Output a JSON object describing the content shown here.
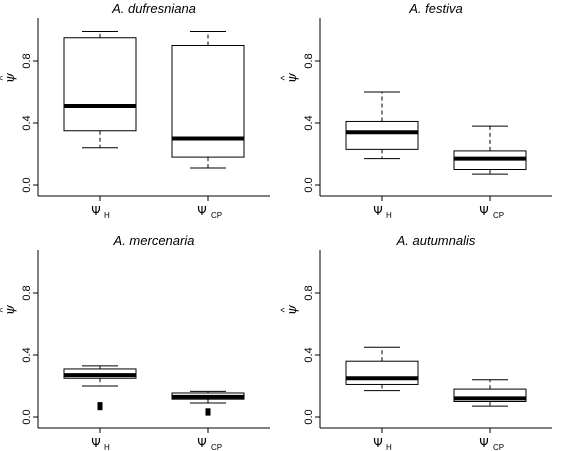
{
  "chart_data": [
    {
      "type": "box",
      "title": "A. dufresniana",
      "ylabel": "ψ",
      "ylabel_accent": "^",
      "ylim": [
        0,
        1
      ],
      "yticks": [
        "0.0",
        "0.4",
        "0.8"
      ],
      "categories": [
        {
          "symbol": "Ψ",
          "sub": "H"
        },
        {
          "symbol": "Ψ",
          "sub": "CP"
        }
      ],
      "boxes": [
        {
          "low": 0.24,
          "q1": 0.35,
          "median": 0.51,
          "q3": 0.95,
          "high": 0.99,
          "outliers": []
        },
        {
          "low": 0.11,
          "q1": 0.18,
          "median": 0.3,
          "q3": 0.9,
          "high": 0.99,
          "outliers": []
        }
      ]
    },
    {
      "type": "box",
      "title": "A. festiva",
      "ylabel": "ψ",
      "ylabel_accent": "^",
      "ylim": [
        0,
        1
      ],
      "yticks": [
        "0.0",
        "0.4",
        "0.8"
      ],
      "categories": [
        {
          "symbol": "Ψ",
          "sub": "H"
        },
        {
          "symbol": "Ψ",
          "sub": "CP"
        }
      ],
      "boxes": [
        {
          "low": 0.17,
          "q1": 0.23,
          "median": 0.34,
          "q3": 0.41,
          "high": 0.6,
          "outliers": []
        },
        {
          "low": 0.07,
          "q1": 0.1,
          "median": 0.17,
          "q3": 0.22,
          "high": 0.38,
          "outliers": []
        }
      ]
    },
    {
      "type": "box",
      "title": "A. mercenaria",
      "ylabel": "ψ",
      "ylabel_accent": "^",
      "ylim": [
        0,
        1
      ],
      "yticks": [
        "0.0",
        "0.4",
        "0.8"
      ],
      "categories": [
        {
          "symbol": "Ψ",
          "sub": "H"
        },
        {
          "symbol": "Ψ",
          "sub": "CP"
        }
      ],
      "boxes": [
        {
          "low": 0.2,
          "q1": 0.25,
          "median": 0.27,
          "q3": 0.31,
          "high": 0.33,
          "outliers": [
            0.06,
            0.08
          ]
        },
        {
          "low": 0.09,
          "q1": 0.115,
          "median": 0.13,
          "q3": 0.155,
          "high": 0.165,
          "outliers": [
            0.025,
            0.04
          ]
        }
      ]
    },
    {
      "type": "box",
      "title": "A. autumnalis",
      "ylabel": "ψ",
      "ylabel_accent": "^",
      "ylim": [
        0,
        1
      ],
      "yticks": [
        "0.0",
        "0.4",
        "0.8"
      ],
      "categories": [
        {
          "symbol": "Ψ",
          "sub": "H"
        },
        {
          "symbol": "Ψ",
          "sub": "CP"
        }
      ],
      "boxes": [
        {
          "low": 0.17,
          "q1": 0.21,
          "median": 0.25,
          "q3": 0.36,
          "high": 0.45,
          "outliers": []
        },
        {
          "low": 0.07,
          "q1": 0.1,
          "median": 0.12,
          "q3": 0.18,
          "high": 0.24,
          "outliers": []
        }
      ]
    }
  ]
}
